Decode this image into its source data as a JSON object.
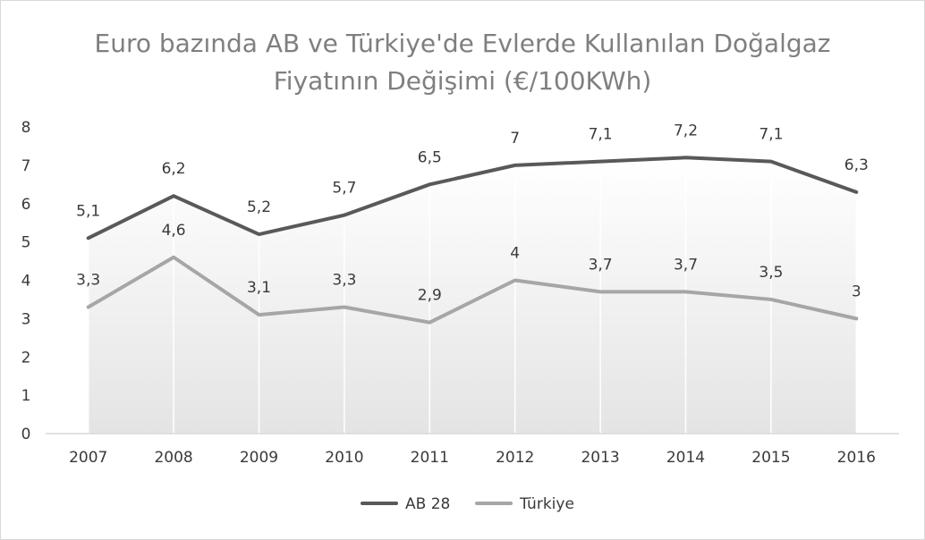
{
  "chart_data": {
    "type": "line",
    "title": "Euro bazında AB ve Türkiye'de Evlerde Kullanılan Doğalgaz Fiyatının Değişimi (€/100KWh)",
    "title_lines": [
      "Euro bazında AB ve Türkiye'de Evlerde Kullanılan Doğalgaz",
      "Fiyatının Değişimi (€/100KWh)"
    ],
    "categories": [
      "2007",
      "2008",
      "2009",
      "2010",
      "2011",
      "2012",
      "2013",
      "2014",
      "2015",
      "2016"
    ],
    "series": [
      {
        "name": "AB 28",
        "color": "#595959",
        "values": [
          5.1,
          6.2,
          5.2,
          5.7,
          6.5,
          7,
          7.1,
          7.2,
          7.1,
          6.3
        ],
        "labels": [
          "5,1",
          "6,2",
          "5,2",
          "5,7",
          "6,5",
          "7",
          "7,1",
          "7,2",
          "7,1",
          "6,3"
        ]
      },
      {
        "name": "Türkiye",
        "color": "#a6a6a6",
        "values": [
          3.3,
          4.6,
          3.1,
          3.3,
          2.9,
          4,
          3.7,
          3.7,
          3.5,
          3
        ],
        "labels": [
          "3,3",
          "4,6",
          "3,1",
          "3,3",
          "2,9",
          "4",
          "3,7",
          "3,7",
          "3,5",
          "3"
        ]
      }
    ],
    "yticks": [
      "0",
      "1",
      "2",
      "3",
      "4",
      "5",
      "6",
      "7",
      "8"
    ],
    "ylim": [
      0,
      8
    ],
    "xlabel": "",
    "ylabel": "",
    "grid": "vertical",
    "legend_position": "bottom"
  }
}
